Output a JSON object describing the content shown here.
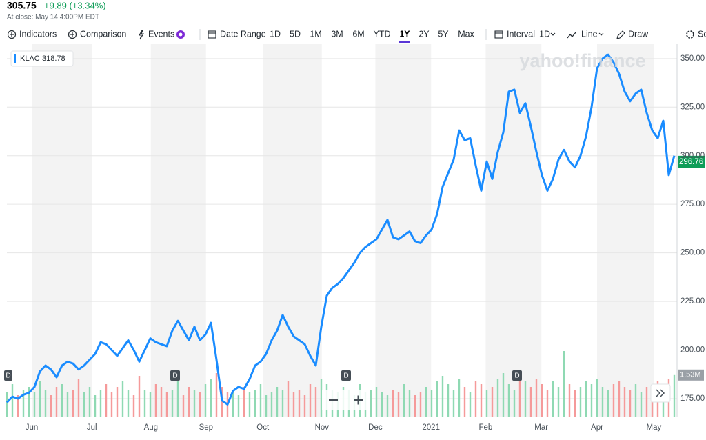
{
  "header": {
    "price": "305.75",
    "change": "+9.89 (+3.34%)",
    "status": "At close: May 14 4:00PM EDT"
  },
  "toolbar": {
    "tools": [
      "Indicators",
      "Comparison",
      "Events"
    ],
    "date_range": "Date Range",
    "ranges": [
      "1D",
      "5D",
      "1M",
      "3M",
      "6M",
      "YTD",
      "1Y",
      "2Y",
      "5Y",
      "Max"
    ],
    "selected_range": "1Y",
    "interval": "Interval",
    "interval_value": "1D",
    "chart_type": "Line",
    "draw": "Draw",
    "settings": "Se"
  },
  "chart_data": {
    "type": "line",
    "watermark": "yahoo!finance",
    "legend": {
      "symbol": "KLAC",
      "value": "318.78"
    },
    "current_value": 296.76,
    "current_value_label": "296.76",
    "events": [
      "D",
      "D",
      "D",
      "D"
    ],
    "xlim": [
      0,
      121.5
    ],
    "xticks": [
      {
        "value": 4.5,
        "label": "Jun"
      },
      {
        "value": 15.4,
        "label": "Jul"
      },
      {
        "value": 26.1,
        "label": "Aug"
      },
      {
        "value": 36.1,
        "label": "Sep"
      },
      {
        "value": 46.4,
        "label": "Oct"
      },
      {
        "value": 57.1,
        "label": "Nov"
      },
      {
        "value": 66.8,
        "label": "Dec"
      },
      {
        "value": 76.9,
        "label": "2021"
      },
      {
        "value": 86.8,
        "label": "Feb"
      },
      {
        "value": 96.9,
        "label": "Mar"
      },
      {
        "value": 107,
        "label": "Apr"
      },
      {
        "value": 117.3,
        "label": "May"
      }
    ],
    "ylim": [
      165.4,
      357.4
    ],
    "yticks": [
      {
        "value": 175,
        "label": "175.00"
      },
      {
        "value": 200,
        "label": "200.00"
      },
      {
        "value": 225,
        "label": "225.00"
      },
      {
        "value": 250,
        "label": "250.00"
      },
      {
        "value": 275,
        "label": "275.00"
      },
      {
        "value": 300,
        "label": "300.00"
      },
      {
        "value": 325,
        "label": "325.00"
      },
      {
        "value": 350,
        "label": "350.00"
      }
    ],
    "grid": true,
    "series": [
      {
        "name": "KLAC",
        "color": "#1a8cff",
        "values": [
          173,
          176,
          175,
          177,
          178,
          181,
          189,
          192,
          190,
          186,
          192,
          194,
          193,
          190,
          192,
          195,
          198,
          204,
          203,
          200,
          197,
          201,
          205,
          200,
          194,
          200,
          206,
          204,
          203,
          202,
          210,
          215,
          210,
          205,
          212,
          205,
          208,
          214,
          195,
          174,
          172,
          179,
          181,
          180,
          185,
          192,
          194,
          198,
          205,
          210,
          218,
          212,
          207,
          205,
          203,
          197,
          192,
          212,
          228,
          232,
          234,
          237,
          241,
          245,
          250,
          253,
          255,
          257,
          262,
          267,
          258,
          257,
          259,
          261,
          256,
          255,
          259,
          262,
          270,
          284,
          291,
          298,
          313,
          308,
          309,
          295,
          282,
          297,
          288,
          302,
          312,
          333,
          334,
          322,
          327,
          315,
          302,
          290,
          282,
          288,
          298,
          303,
          297,
          294,
          300,
          310,
          325,
          345,
          350,
          352,
          348,
          342,
          333,
          328,
          332,
          334,
          322,
          313,
          309,
          318,
          290,
          300
        ]
      }
    ],
    "volume": {
      "up_color": "#8fd9b3",
      "down_color": "#f59a9a",
      "vlim": [
        0,
        5
      ],
      "last_label": "1.53M",
      "values": [
        0.9,
        1.2,
        0.8,
        1.0,
        1.1,
        0.9,
        1.3,
        1.0,
        0.8,
        1.1,
        1.2,
        0.9,
        1.0,
        1.4,
        0.9,
        1.1,
        0.8,
        1.0,
        1.2,
        0.9,
        1.1,
        1.3,
        1.0,
        0.8,
        1.5,
        1.0,
        0.9,
        1.2,
        1.1,
        0.9,
        1.0,
        1.3,
        0.8,
        1.1,
        1.0,
        0.9,
        1.2,
        1.4,
        1.6,
        1.1,
        0.9,
        1.0,
        0.8,
        1.1,
        0.9,
        1.0,
        1.2,
        0.8,
        0.9,
        1.1,
        1.0,
        1.3,
        0.9,
        1.0,
        0.8,
        1.2,
        1.1,
        1.4,
        1.2,
        1.0,
        0.9,
        1.1,
        1.0,
        0.8,
        1.2,
        0.9,
        1.0,
        1.1,
        0.9,
        0.8,
        1.0,
        0.9,
        1.2,
        1.0,
        0.8,
        0.9,
        1.1,
        1.0,
        1.3,
        1.5,
        1.2,
        1.0,
        1.4,
        1.1,
        0.9,
        1.3,
        1.2,
        1.0,
        1.1,
        1.4,
        1.6,
        1.2,
        1.0,
        1.5,
        1.3,
        1.1,
        1.4,
        1.2,
        1.0,
        1.3,
        1.1,
        2.4,
        1.2,
        1.0,
        1.1,
        1.3,
        1.2,
        1.4,
        1.1,
        1.0,
        1.2,
        1.3,
        1.1,
        1.0,
        1.2,
        0.9,
        1.1,
        1.0,
        1.3,
        1.2,
        1.4,
        1.53
      ]
    }
  }
}
